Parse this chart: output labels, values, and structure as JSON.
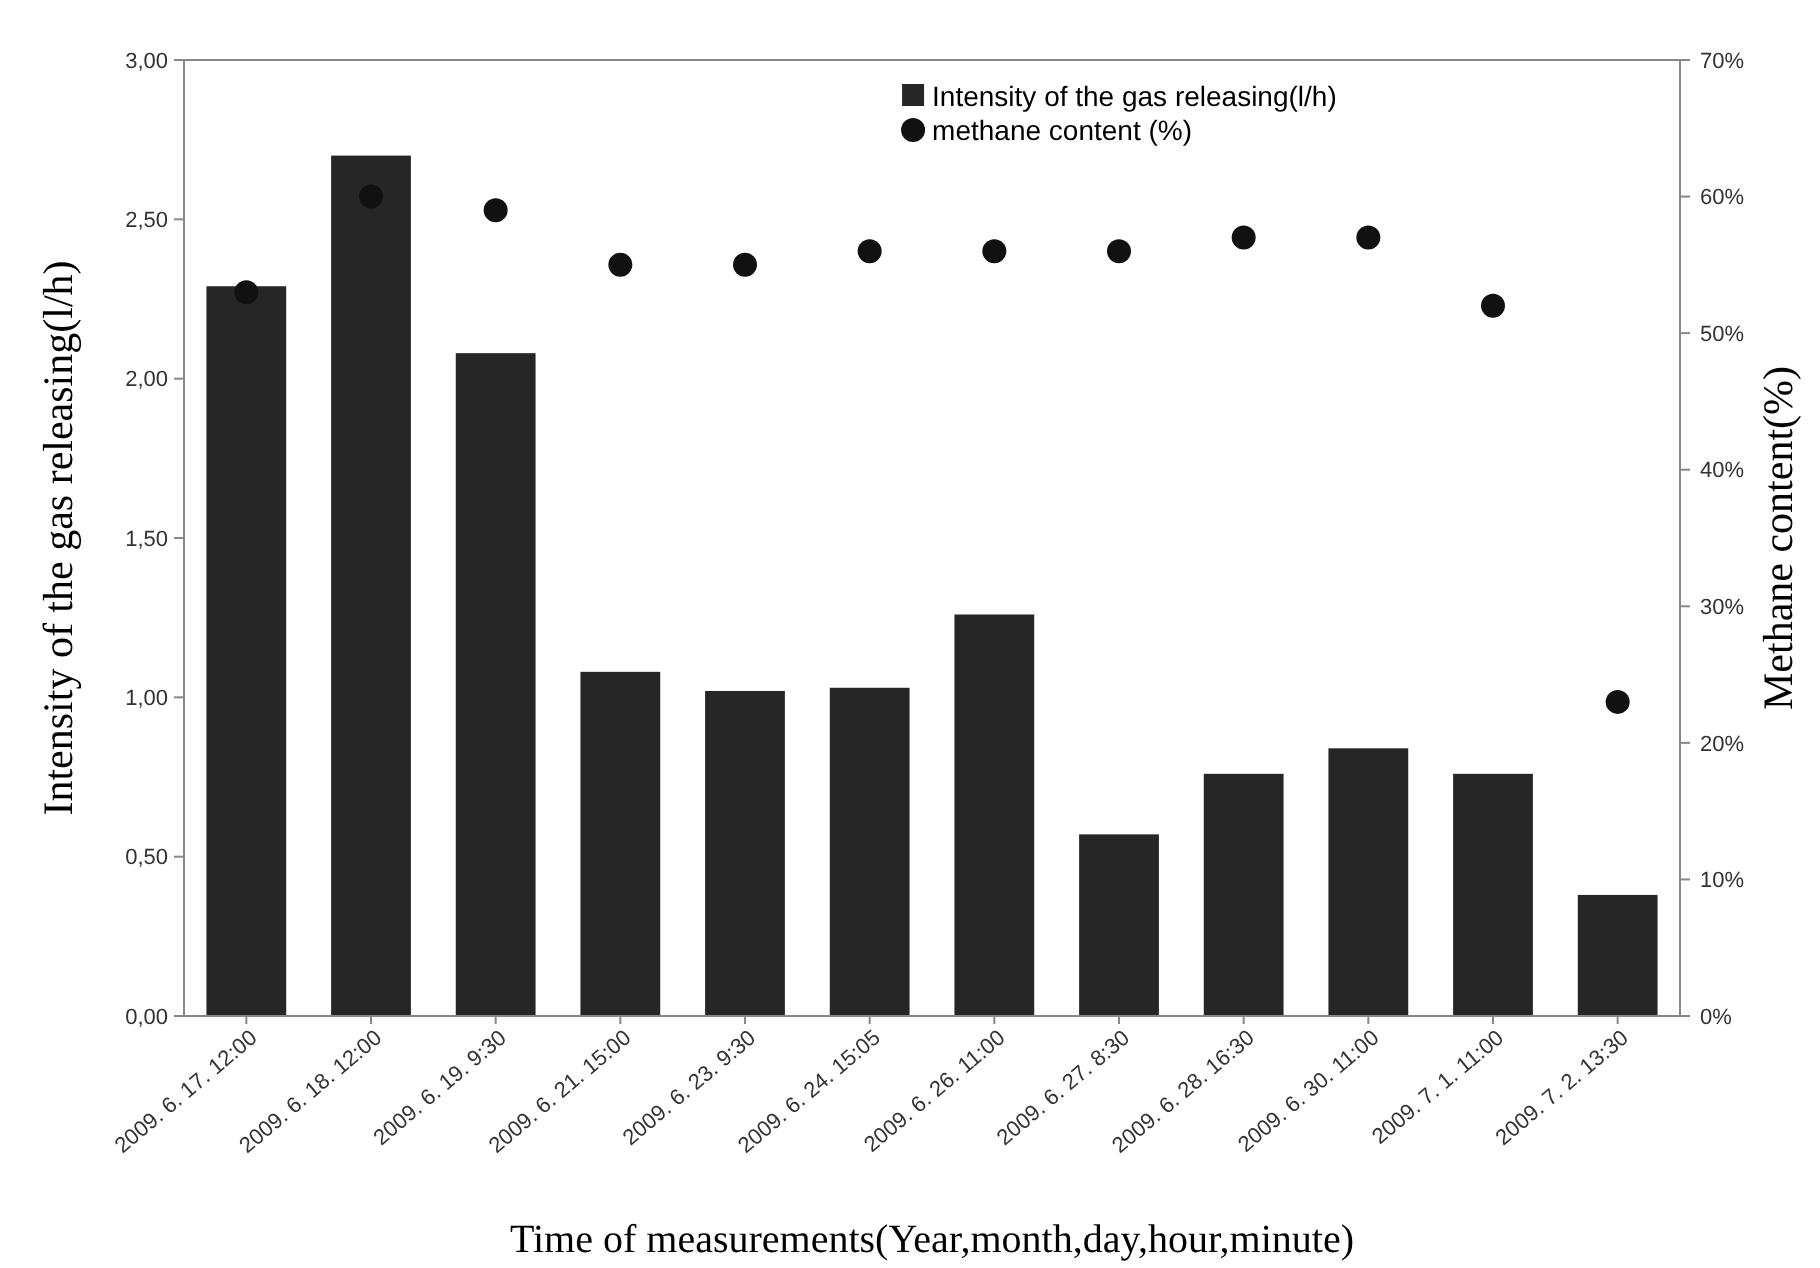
{
  "chart_data": {
    "type": "bar",
    "xlabel": "Time of measurements(Year,month,day,hour,minute)",
    "ylabel": "Intensity of the gas releasing(l/h)",
    "y2label": "Methane content(%)",
    "categories": [
      "2009. 6. 17. 12:00",
      "2009. 6. 18. 12:00",
      "2009. 6. 19. 9:30",
      "2009. 6. 21. 15:00",
      "2009. 6. 23. 9:30",
      "2009. 6. 24. 15:05",
      "2009. 6. 26. 11:00",
      "2009. 6. 27. 8:30",
      "2009. 6. 28. 16:30",
      "2009. 6. 30. 11:00",
      "2009. 7. 1. 11:00",
      "2009. 7. 2. 13:30"
    ],
    "series": [
      {
        "name": "Intensity of the gas releasing(l/h)",
        "color": "#262626",
        "values": [
          2.29,
          2.7,
          2.08,
          1.08,
          1.02,
          1.03,
          1.26,
          0.57,
          0.76,
          0.84,
          0.76,
          0.38
        ]
      },
      {
        "name": "methane content (%)",
        "type": "scatter",
        "axis": "y2",
        "color": "#111111",
        "marker": "circle",
        "values": [
          53,
          60,
          59,
          55,
          55,
          56,
          56,
          56,
          57,
          57,
          52,
          23
        ]
      }
    ],
    "ylim": [
      0,
      3
    ],
    "yticks": [
      {
        "value": 0,
        "label": "0,00"
      },
      {
        "value": 0.5,
        "label": "0,50"
      },
      {
        "value": 1,
        "label": "1,00"
      },
      {
        "value": 1.5,
        "label": "1,50"
      },
      {
        "value": 2,
        "label": "2,00"
      },
      {
        "value": 2.5,
        "label": "2,50"
      },
      {
        "value": 3,
        "label": "3,00"
      }
    ],
    "y2lim": [
      0,
      70
    ],
    "y2ticks": [
      {
        "value": 0,
        "label": "0%"
      },
      {
        "value": 10,
        "label": "10%"
      },
      {
        "value": 20,
        "label": "20%"
      },
      {
        "value": 30,
        "label": "30%"
      },
      {
        "value": 40,
        "label": "40%"
      },
      {
        "value": 50,
        "label": "50%"
      },
      {
        "value": 60,
        "label": "60%"
      },
      {
        "value": 70,
        "label": "70%"
      }
    ],
    "grid": false,
    "legend": "top right"
  }
}
